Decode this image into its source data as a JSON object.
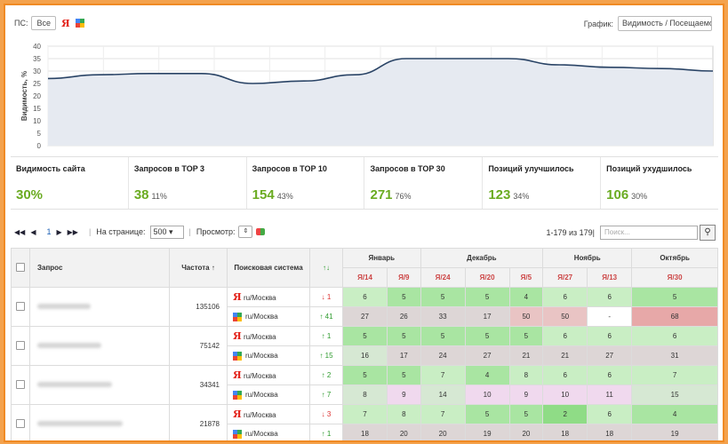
{
  "top": {
    "ps_label": "ПС:",
    "all_button": "Все",
    "yandex_icon": "Я",
    "graph_label": "График:",
    "graph_select": "Видимость / Посещаемо"
  },
  "chart_data": {
    "type": "area",
    "ylabel": "Видимость, %",
    "ylim": [
      0,
      40
    ],
    "yticks": [
      0,
      5,
      10,
      15,
      20,
      25,
      30,
      35,
      40
    ],
    "series": [
      {
        "values": [
          27,
          28.5,
          29,
          29,
          25,
          26,
          28.5,
          35,
          35,
          35,
          32.5,
          31.5,
          31,
          30
        ]
      }
    ],
    "grid": true
  },
  "metrics": [
    {
      "label": "Видимость сайта",
      "value": "30%",
      "pct": ""
    },
    {
      "label": "Запросов в TOP 3",
      "value": "38",
      "pct": "11%"
    },
    {
      "label": "Запросов в TOP 10",
      "value": "154",
      "pct": "43%"
    },
    {
      "label": "Запросов в TOP 30",
      "value": "271",
      "pct": "76%"
    },
    {
      "label": "Позиций улучшилось",
      "value": "123",
      "pct": "34%"
    },
    {
      "label": "Позиций ухудшилось",
      "value": "106",
      "pct": "30%"
    }
  ],
  "pager": {
    "first": "◀◀",
    "prev": "◀",
    "page": "1",
    "next": "▶",
    "last": "▶▶",
    "per_page_label": "На странице:",
    "per_page": "500",
    "view_label": "Просмотр:",
    "range": "1-179 из 179",
    "search_placeholder": "Поиск..."
  },
  "table": {
    "headers": {
      "query": "Запрос",
      "freq": "Частота",
      "freq_sort": "↑",
      "se": "Поисковая система",
      "change": "↑↓"
    },
    "months": [
      "Январь",
      "Декабрь",
      "Ноябрь",
      "Октябрь"
    ],
    "dates": [
      "Я/14",
      "Я/9",
      "Я/24",
      "Я/20",
      "Я/5",
      "Я/27",
      "Я/13",
      "Я/30"
    ],
    "rows": [
      {
        "freq": "135106",
        "ya": {
          "region": "ru/Москва",
          "change": "↓ 1",
          "dir": "dn",
          "vals": [
            "6",
            "5",
            "5",
            "5",
            "4",
            "6",
            "6",
            "5"
          ]
        },
        "go": {
          "region": "ru/Москва",
          "change": "↑ 41",
          "dir": "up",
          "vals": [
            "27",
            "26",
            "33",
            "17",
            "50",
            "50",
            "-",
            "68"
          ]
        }
      },
      {
        "freq": "75142",
        "ya": {
          "region": "ru/Москва",
          "change": "↑ 1",
          "dir": "up",
          "vals": [
            "5",
            "5",
            "5",
            "5",
            "5",
            "6",
            "6",
            "6"
          ]
        },
        "go": {
          "region": "ru/Москва",
          "change": "↑ 15",
          "dir": "up",
          "vals": [
            "16",
            "17",
            "24",
            "27",
            "21",
            "21",
            "27",
            "31"
          ]
        }
      },
      {
        "freq": "34341",
        "ya": {
          "region": "ru/Москва",
          "change": "↑ 2",
          "dir": "up",
          "vals": [
            "5",
            "5",
            "7",
            "4",
            "8",
            "6",
            "6",
            "7"
          ]
        },
        "go": {
          "region": "ru/Москва",
          "change": "↑ 7",
          "dir": "up",
          "vals": [
            "8",
            "9",
            "14",
            "10",
            "9",
            "10",
            "11",
            "15"
          ]
        }
      },
      {
        "freq": "21878",
        "ya": {
          "region": "ru/Москва",
          "change": "↓ 3",
          "dir": "dn",
          "vals": [
            "7",
            "8",
            "7",
            "5",
            "5",
            "2",
            "6",
            "4"
          ]
        },
        "go": {
          "region": "ru/Москва",
          "change": "↑ 1",
          "dir": "up",
          "vals": [
            "18",
            "20",
            "20",
            "19",
            "20",
            "18",
            "18",
            "19"
          ]
        }
      }
    ]
  }
}
